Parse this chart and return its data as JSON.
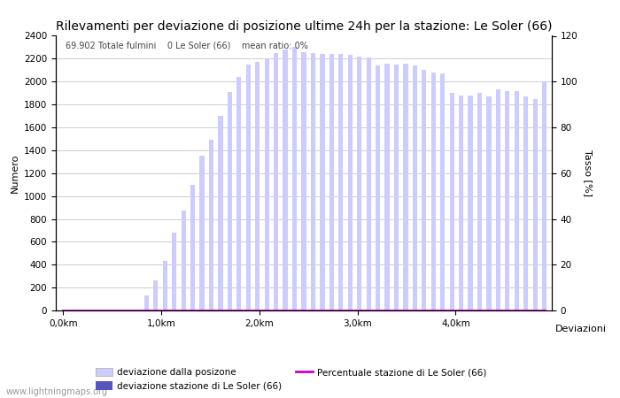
{
  "title": "Rilevamenti per deviazione di posizione ultime 24h per la stazione: Le Soler (66)",
  "xlabel": "Deviazioni",
  "ylabel_left": "Numero",
  "ylabel_right": "Tasso [%]",
  "info_text": "69.902 Totale fulmini    0 Le Soler (66)    mean ratio: 0%",
  "watermark": "www.lightningmaps.org",
  "bar_values": [
    0,
    0,
    0,
    0,
    0,
    0,
    0,
    0,
    0,
    130,
    260,
    430,
    680,
    870,
    1100,
    1350,
    1490,
    1700,
    1910,
    2040,
    2150,
    2170,
    2200,
    2250,
    2280,
    2300,
    2260,
    2250,
    2240,
    2240,
    2240,
    2230,
    2220,
    2210,
    2140,
    2160,
    2150,
    2160,
    2140,
    2100,
    2080,
    2070,
    1900,
    1880,
    1880,
    1900,
    1870,
    1930,
    1920,
    1920,
    1870,
    1850,
    2000
  ],
  "station_values": [
    0,
    0,
    0,
    0,
    0,
    0,
    0,
    0,
    0,
    0,
    0,
    0,
    0,
    0,
    0,
    0,
    0,
    0,
    0,
    0,
    0,
    0,
    0,
    0,
    0,
    0,
    0,
    0,
    0,
    0,
    0,
    0,
    0,
    0,
    0,
    0,
    0,
    0,
    0,
    0,
    0,
    0,
    0,
    0,
    0,
    0,
    0,
    0,
    0,
    0,
    0,
    0,
    0
  ],
  "n_bars": 53,
  "ylim_left": [
    0,
    2400
  ],
  "ylim_right": [
    0,
    120
  ],
  "yticks_left": [
    0,
    200,
    400,
    600,
    800,
    1000,
    1200,
    1400,
    1600,
    1800,
    2000,
    2200,
    2400
  ],
  "yticks_right": [
    0,
    20,
    40,
    60,
    80,
    100,
    120
  ],
  "bar_color_light": "#ccccff",
  "bar_color_dark": "#5555bb",
  "line_color": "#cc00cc",
  "bg_color": "#ffffff",
  "grid_color": "#bbbbbb",
  "title_fontsize": 10,
  "label_fontsize": 8,
  "tick_fontsize": 7.5,
  "legend_label_light": "deviazione dalla posizone",
  "legend_label_dark": "deviazione stazione di Le Soler (66)",
  "legend_label_line": "Percentuale stazione di Le Soler (66)"
}
